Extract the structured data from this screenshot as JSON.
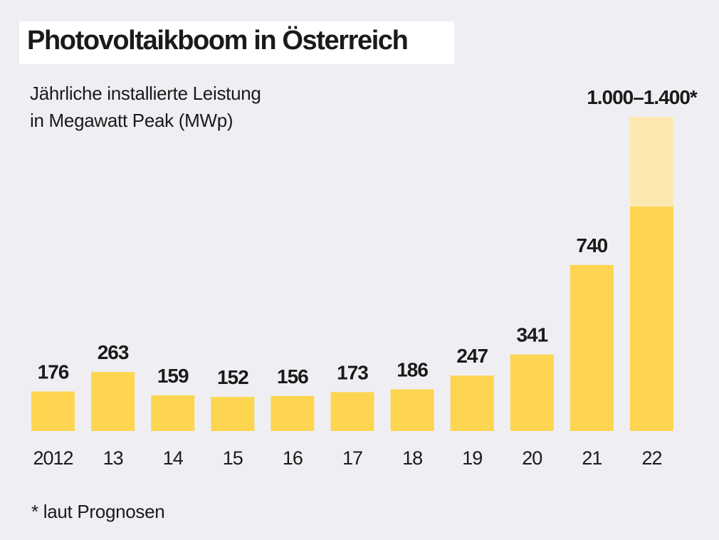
{
  "chart_data": {
    "type": "bar",
    "title": "Photovoltaikboom in Österreich",
    "subtitle": [
      "Jährliche installierte Leistung",
      "in Megawatt Peak (MWp)"
    ],
    "categories": [
      "2012",
      "13",
      "14",
      "15",
      "16",
      "17",
      "18",
      "19",
      "20",
      "21",
      "22"
    ],
    "values": [
      176,
      263,
      159,
      152,
      156,
      173,
      186,
      247,
      341,
      740,
      1000
    ],
    "range_upper": [
      null,
      null,
      null,
      null,
      null,
      null,
      null,
      null,
      null,
      null,
      1400
    ],
    "data_labels": [
      "176",
      "263",
      "159",
      "152",
      "156",
      "173",
      "186",
      "247",
      "341",
      "740",
      "1.000–1.400*"
    ],
    "footnote": "* laut Prognosen",
    "ylim": [
      0,
      1400
    ],
    "grid": false,
    "colors": {
      "bar": "#FDD550",
      "forecast_range": "#FDE9AF",
      "background": "#EFEFF3",
      "title_box": "#FFFFFF"
    }
  }
}
